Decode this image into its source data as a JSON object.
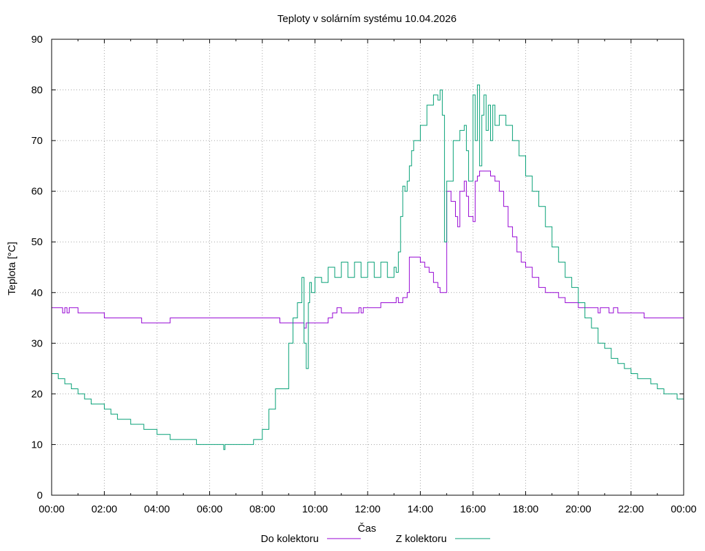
{
  "chart_data": {
    "type": "line",
    "title": "Teploty v solárním systému 10.04.2026",
    "xlabel": "Čas",
    "ylabel": "Teplota [°C]",
    "xlim": [
      "00:00",
      "24:00"
    ],
    "ylim": [
      0,
      90
    ],
    "x_ticks": [
      "00:00",
      "02:00",
      "04:00",
      "06:00",
      "08:00",
      "10:00",
      "12:00",
      "14:00",
      "16:00",
      "18:00",
      "20:00",
      "22:00",
      "00:00"
    ],
    "y_ticks": [
      "0",
      "10",
      "20",
      "30",
      "40",
      "50",
      "60",
      "70",
      "80",
      "90"
    ],
    "grid": true,
    "legend_position": "bottom",
    "series": [
      {
        "name": "Do kolektoru",
        "color": "#9400d3",
        "x": [
          "00:00",
          "00:20",
          "00:25",
          "00:30",
          "00:35",
          "00:40",
          "01:00",
          "01:15",
          "01:30",
          "02:00",
          "03:00",
          "03:20",
          "03:25",
          "03:30",
          "04:00",
          "04:15",
          "04:30",
          "05:00",
          "06:00",
          "07:00",
          "08:00",
          "08:35",
          "08:40",
          "09:00",
          "09:30",
          "09:35",
          "09:40",
          "09:45",
          "10:00",
          "10:30",
          "10:40",
          "10:50",
          "11:00",
          "11:30",
          "11:40",
          "11:45",
          "11:50",
          "12:00",
          "12:30",
          "12:50",
          "13:00",
          "13:05",
          "13:10",
          "13:20",
          "13:30",
          "13:35",
          "13:45",
          "14:00",
          "14:10",
          "14:20",
          "14:30",
          "14:40",
          "14:45",
          "14:48",
          "14:50",
          "14:55",
          "15:00",
          "15:10",
          "15:20",
          "15:25",
          "15:30",
          "15:40",
          "15:45",
          "15:50",
          "16:00",
          "16:05",
          "16:10",
          "16:15",
          "16:20",
          "16:30",
          "16:40",
          "16:50",
          "17:00",
          "17:10",
          "17:20",
          "17:30",
          "17:40",
          "17:50",
          "18:00",
          "18:15",
          "18:30",
          "18:45",
          "19:00",
          "19:15",
          "19:30",
          "19:45",
          "20:00",
          "20:15",
          "20:30",
          "20:45",
          "20:50",
          "21:00",
          "21:10",
          "21:20",
          "21:30",
          "22:00",
          "22:15",
          "22:20",
          "22:30",
          "23:00",
          "23:30",
          "24:00"
        ],
        "y": [
          37,
          37,
          36,
          37,
          36,
          37,
          36,
          36,
          36,
          35,
          35,
          35,
          34,
          34,
          34,
          34,
          35,
          35,
          35,
          35,
          35,
          35,
          34,
          34,
          34,
          33,
          34,
          34,
          34,
          35,
          36,
          37,
          36,
          36,
          37,
          36,
          37,
          37,
          38,
          38,
          38,
          39,
          38,
          39,
          40,
          47,
          47,
          46,
          45,
          44,
          42,
          41,
          40,
          40,
          40,
          40,
          60,
          58,
          55,
          53,
          60,
          62,
          59,
          55,
          54,
          62,
          63,
          64,
          64,
          64,
          63,
          62,
          60,
          57,
          53,
          51,
          48,
          46,
          45,
          43,
          41,
          40,
          40,
          39,
          38,
          38,
          37,
          37,
          37,
          36,
          37,
          37,
          36,
          37,
          36,
          36,
          36,
          36,
          35,
          35,
          35,
          35
        ]
      },
      {
        "name": "Z kolektoru",
        "color": "#009e73",
        "x": [
          "00:00",
          "00:15",
          "00:30",
          "00:45",
          "01:00",
          "01:15",
          "01:30",
          "01:45",
          "02:00",
          "02:15",
          "02:30",
          "03:00",
          "03:30",
          "04:00",
          "04:15",
          "04:30",
          "05:00",
          "05:30",
          "06:00",
          "06:30",
          "06:32",
          "06:35",
          "07:00",
          "07:30",
          "07:40",
          "08:00",
          "08:15",
          "08:30",
          "09:00",
          "09:10",
          "09:20",
          "09:30",
          "09:35",
          "09:40",
          "09:45",
          "09:48",
          "09:52",
          "10:00",
          "10:15",
          "10:30",
          "10:45",
          "11:00",
          "11:15",
          "11:30",
          "11:45",
          "12:00",
          "12:15",
          "12:30",
          "12:45",
          "13:00",
          "13:05",
          "13:10",
          "13:15",
          "13:20",
          "13:25",
          "13:30",
          "13:35",
          "13:40",
          "13:45",
          "14:00",
          "14:15",
          "14:30",
          "14:40",
          "14:45",
          "14:50",
          "14:55",
          "15:00",
          "15:15",
          "15:30",
          "15:40",
          "15:45",
          "15:50",
          "16:00",
          "16:05",
          "16:10",
          "16:15",
          "16:20",
          "16:25",
          "16:30",
          "16:35",
          "16:40",
          "16:45",
          "16:50",
          "17:00",
          "17:15",
          "17:30",
          "17:45",
          "18:00",
          "18:15",
          "18:30",
          "18:45",
          "19:00",
          "19:15",
          "19:30",
          "19:45",
          "20:00",
          "20:15",
          "20:30",
          "20:45",
          "21:00",
          "21:15",
          "21:30",
          "21:45",
          "22:00",
          "22:15",
          "22:30",
          "22:45",
          "23:00",
          "23:15",
          "23:30",
          "23:45",
          "24:00"
        ],
        "y": [
          24,
          23,
          22,
          21,
          20,
          19,
          18,
          18,
          17,
          16,
          15,
          14,
          13,
          12,
          12,
          11,
          11,
          10,
          10,
          10,
          9,
          10,
          10,
          10,
          11,
          13,
          17,
          21,
          30,
          35,
          38,
          43,
          30,
          25,
          38,
          42,
          40,
          43,
          42,
          45,
          43,
          46,
          43,
          46,
          43,
          46,
          43,
          46,
          43,
          45,
          44,
          48,
          55,
          61,
          60,
          62,
          65,
          68,
          70,
          73,
          77,
          79,
          78,
          80,
          75,
          50,
          62,
          70,
          72,
          73,
          68,
          62,
          79,
          70,
          81,
          65,
          75,
          79,
          72,
          77,
          70,
          77,
          73,
          75,
          73,
          70,
          67,
          63,
          60,
          57,
          53,
          49,
          46,
          43,
          41,
          38,
          35,
          33,
          30,
          29,
          27,
          26,
          25,
          24,
          23,
          23,
          22,
          21,
          20,
          20,
          19,
          18
        ]
      }
    ]
  }
}
